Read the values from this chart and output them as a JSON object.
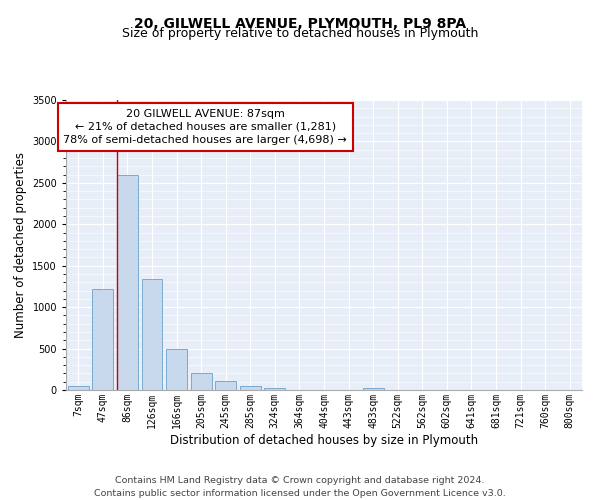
{
  "title1": "20, GILWELL AVENUE, PLYMOUTH, PL9 8PA",
  "title2": "Size of property relative to detached houses in Plymouth",
  "xlabel": "Distribution of detached houses by size in Plymouth",
  "ylabel": "Number of detached properties",
  "bar_labels": [
    "7sqm",
    "47sqm",
    "86sqm",
    "126sqm",
    "166sqm",
    "205sqm",
    "245sqm",
    "285sqm",
    "324sqm",
    "364sqm",
    "404sqm",
    "443sqm",
    "483sqm",
    "522sqm",
    "562sqm",
    "602sqm",
    "641sqm",
    "681sqm",
    "721sqm",
    "760sqm",
    "800sqm"
  ],
  "bar_values": [
    50,
    1220,
    2590,
    1340,
    500,
    200,
    110,
    50,
    30,
    0,
    0,
    0,
    30,
    0,
    0,
    0,
    0,
    0,
    0,
    0,
    0
  ],
  "bar_color": "#c8d9ee",
  "bar_edge_color": "#7aaad0",
  "vline_color": "#cc0000",
  "ylim": [
    0,
    3500
  ],
  "yticks": [
    0,
    500,
    1000,
    1500,
    2000,
    2500,
    3000,
    3500
  ],
  "annotation_box_text": "20 GILWELL AVENUE: 87sqm\n← 21% of detached houses are smaller (1,281)\n78% of semi-detached houses are larger (4,698) →",
  "footnote1": "Contains HM Land Registry data © Crown copyright and database right 2024.",
  "footnote2": "Contains public sector information licensed under the Open Government Licence v3.0.",
  "bg_color": "#ffffff",
  "plot_bg_color": "#e8eef8",
  "grid_color": "#ffffff",
  "title1_fontsize": 10,
  "title2_fontsize": 9,
  "axis_label_fontsize": 8.5,
  "tick_fontsize": 7,
  "annotation_fontsize": 8,
  "footnote_fontsize": 6.8
}
